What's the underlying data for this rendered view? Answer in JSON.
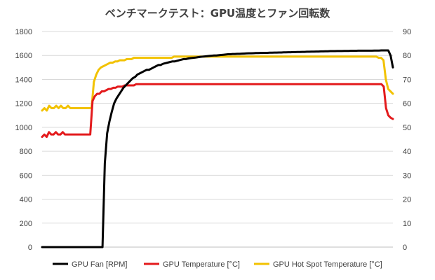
{
  "chart_data": {
    "type": "line",
    "title": "ベンチマークテスト：GPU温度とファン回転数",
    "x_points": 152,
    "y_left": {
      "min": 0,
      "max": 1800,
      "step": 200,
      "ticks": [
        "0",
        "200",
        "400",
        "600",
        "800",
        "1000",
        "1200",
        "1400",
        "1600",
        "1800"
      ]
    },
    "y_right": {
      "min": 0,
      "max": 90,
      "step": 10,
      "ticks": [
        "0",
        "10",
        "20",
        "30",
        "40",
        "50",
        "60",
        "70",
        "80",
        "90"
      ]
    },
    "grid": true,
    "legend_position": "bottom",
    "series": [
      {
        "name": "GPU Fan [RPM]",
        "color": "#000000",
        "axis": "left",
        "values": [
          0,
          0,
          0,
          0,
          0,
          0,
          0,
          0,
          0,
          0,
          0,
          0,
          0,
          0,
          0,
          0,
          0,
          0,
          0,
          0,
          0,
          0,
          0,
          0,
          0,
          0,
          0,
          700,
          950,
          1050,
          1130,
          1200,
          1240,
          1270,
          1300,
          1330,
          1350,
          1370,
          1390,
          1410,
          1420,
          1440,
          1450,
          1460,
          1470,
          1480,
          1480,
          1490,
          1500,
          1510,
          1520,
          1520,
          1530,
          1535,
          1540,
          1545,
          1550,
          1550,
          1555,
          1560,
          1565,
          1570,
          1570,
          1575,
          1578,
          1580,
          1582,
          1585,
          1588,
          1590,
          1592,
          1594,
          1596,
          1598,
          1600,
          1600,
          1602,
          1604,
          1606,
          1608,
          1610,
          1610,
          1612,
          1612,
          1614,
          1614,
          1615,
          1616,
          1617,
          1618,
          1618,
          1619,
          1620,
          1620,
          1621,
          1621,
          1622,
          1622,
          1623,
          1623,
          1624,
          1624,
          1625,
          1625,
          1626,
          1626,
          1627,
          1627,
          1628,
          1628,
          1629,
          1629,
          1630,
          1630,
          1631,
          1631,
          1632,
          1632,
          1633,
          1633,
          1634,
          1634,
          1635,
          1635,
          1636,
          1636,
          1636,
          1637,
          1637,
          1637,
          1638,
          1638,
          1638,
          1639,
          1639,
          1639,
          1640,
          1640,
          1640,
          1640,
          1640,
          1640,
          1640,
          1641,
          1641,
          1641,
          1642,
          1642,
          1642,
          1642,
          1600,
          1500
        ]
      },
      {
        "name": "GPU Temperature [°C]",
        "color": "#e31a1c",
        "axis": "right",
        "values": [
          46,
          47,
          46,
          48,
          47,
          47,
          48,
          47,
          47,
          48,
          47,
          47,
          47,
          47,
          47,
          47,
          47,
          47,
          47,
          47,
          47,
          47,
          61,
          63,
          64,
          64,
          65,
          65,
          65.5,
          66,
          66,
          66.5,
          66.5,
          67,
          67,
          67,
          67.5,
          67.5,
          67.5,
          67.5,
          67.5,
          68,
          68,
          68,
          68,
          68,
          68,
          68,
          68,
          68,
          68,
          68,
          68,
          68,
          68,
          68,
          68,
          68,
          68,
          68,
          68,
          68,
          68,
          68,
          68,
          68,
          68,
          68,
          68,
          68,
          68,
          68,
          68,
          68,
          68,
          68,
          68,
          68,
          68,
          68,
          68,
          68,
          68,
          68,
          68,
          68,
          68,
          68,
          68,
          68,
          68,
          68,
          68,
          68,
          68,
          68,
          68,
          68,
          68,
          68,
          68,
          68,
          68,
          68,
          68,
          68,
          68,
          68,
          68,
          68,
          68,
          68,
          68,
          68,
          68,
          68,
          68,
          68,
          68,
          68,
          68,
          68,
          68,
          68,
          68,
          68,
          68,
          68,
          68,
          68,
          68,
          68,
          68,
          68,
          68,
          68,
          68,
          68,
          68,
          68,
          68,
          68,
          68,
          68,
          68,
          68,
          68,
          68,
          68,
          67,
          58,
          55,
          54,
          53.5
        ]
      },
      {
        "name": "GPU Hot Spot Temperature [°C]",
        "color": "#f2c200",
        "axis": "right",
        "values": [
          57,
          58,
          57,
          59,
          58,
          58,
          59,
          58,
          59,
          58,
          58,
          59,
          58,
          58,
          58,
          58,
          58,
          58,
          58,
          58,
          58,
          58,
          69,
          72,
          74,
          75,
          75.5,
          76,
          76.5,
          77,
          77,
          77.5,
          77.5,
          78,
          78,
          78,
          78.5,
          78.5,
          78.5,
          79,
          79,
          79,
          79,
          79,
          79,
          79,
          79,
          79,
          79,
          79,
          79,
          79,
          79,
          79,
          79,
          79,
          79.5,
          79.5,
          79.5,
          79.5,
          79.5,
          79.5,
          79.5,
          79.5,
          79.5,
          79.5,
          79.5,
          79.5,
          79.5,
          79.5,
          79.5,
          79.5,
          79.5,
          79.5,
          79.5,
          79.5,
          79.5,
          79.5,
          79.5,
          79.5,
          79.5,
          79.5,
          79.5,
          79.5,
          79.5,
          79.5,
          79.5,
          79.5,
          79.5,
          79.5,
          79.5,
          79.5,
          79.5,
          79.5,
          79.5,
          79.5,
          79.5,
          79.5,
          79.5,
          79.5,
          79.5,
          79.5,
          79.5,
          79.5,
          79.5,
          79.5,
          79.5,
          79.5,
          79.5,
          79.5,
          79.5,
          79.5,
          79.5,
          79.5,
          79.5,
          79.5,
          79.5,
          79.5,
          79.5,
          79.5,
          79.5,
          79.5,
          79.5,
          79.5,
          79.5,
          79.5,
          79.5,
          79.5,
          79.5,
          79.5,
          79.5,
          79.5,
          79.5,
          79.5,
          79.5,
          79.5,
          79.5,
          79.5,
          79.5,
          79.5,
          79.5,
          79.5,
          79.5,
          79,
          79,
          78,
          70,
          66,
          65,
          64
        ]
      }
    ]
  }
}
